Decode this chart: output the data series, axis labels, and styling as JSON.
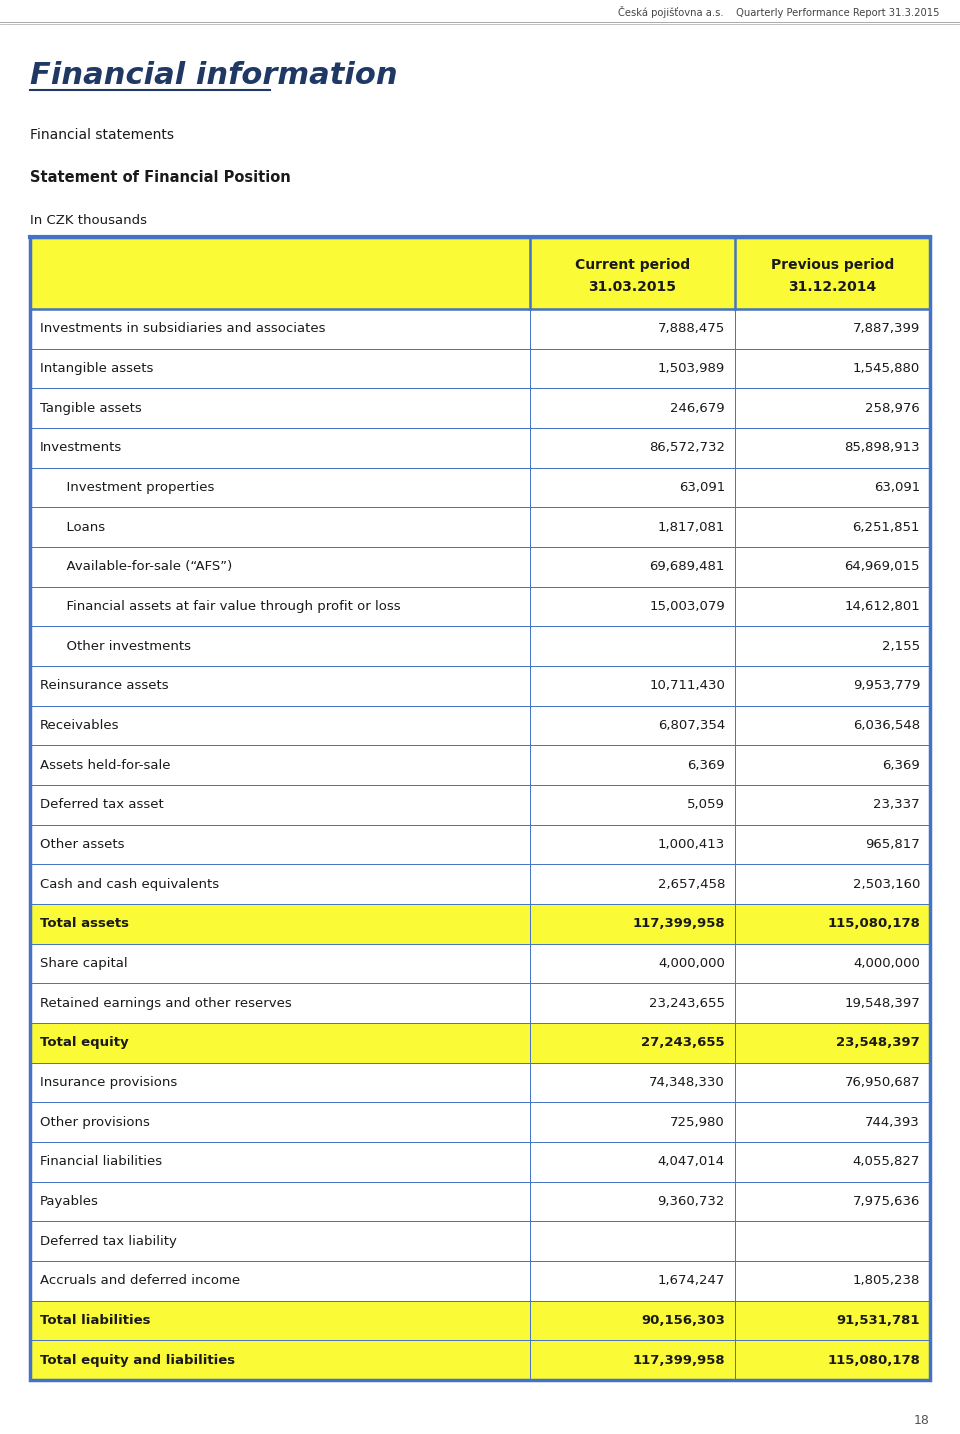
{
  "header_text": "Česká pojišťovna a.s.    Quarterly Performance Report 31.3.2015",
  "page_number": "18",
  "title": "Financial information",
  "subtitle1": "Financial statements",
  "subtitle2": "Statement of Financial Position",
  "subtitle3": "In CZK thousands",
  "rows": [
    {
      "label": "Investments in subsidiaries and associates",
      "val1": "7,888,475",
      "val2": "7,887,399",
      "indent": 0,
      "bold": false,
      "yellow": false
    },
    {
      "label": "Intangible assets",
      "val1": "1,503,989",
      "val2": "1,545,880",
      "indent": 0,
      "bold": false,
      "yellow": false
    },
    {
      "label": "Tangible assets",
      "val1": "246,679",
      "val2": "258,976",
      "indent": 0,
      "bold": false,
      "yellow": false
    },
    {
      "label": "Investments",
      "val1": "86,572,732",
      "val2": "85,898,913",
      "indent": 0,
      "bold": false,
      "yellow": false
    },
    {
      "label": "  Investment properties",
      "val1": "63,091",
      "val2": "63,091",
      "indent": 1,
      "bold": false,
      "yellow": false
    },
    {
      "label": "  Loans",
      "val1": "1,817,081",
      "val2": "6,251,851",
      "indent": 1,
      "bold": false,
      "yellow": false
    },
    {
      "label": "  Available-for-sale (“AFS”)",
      "val1": "69,689,481",
      "val2": "64,969,015",
      "indent": 1,
      "bold": false,
      "yellow": false
    },
    {
      "label": "  Financial assets at fair value through profit or loss",
      "val1": "15,003,079",
      "val2": "14,612,801",
      "indent": 1,
      "bold": false,
      "yellow": false
    },
    {
      "label": "  Other investments",
      "val1": "",
      "val2": "2,155",
      "indent": 1,
      "bold": false,
      "yellow": false
    },
    {
      "label": "Reinsurance assets",
      "val1": "10,711,430",
      "val2": "9,953,779",
      "indent": 0,
      "bold": false,
      "yellow": false
    },
    {
      "label": "Receivables",
      "val1": "6,807,354",
      "val2": "6,036,548",
      "indent": 0,
      "bold": false,
      "yellow": false
    },
    {
      "label": "Assets held-for-sale",
      "val1": "6,369",
      "val2": "6,369",
      "indent": 0,
      "bold": false,
      "yellow": false
    },
    {
      "label": "Deferred tax asset",
      "val1": "5,059",
      "val2": "23,337",
      "indent": 0,
      "bold": false,
      "yellow": false
    },
    {
      "label": "Other assets",
      "val1": "1,000,413",
      "val2": "965,817",
      "indent": 0,
      "bold": false,
      "yellow": false
    },
    {
      "label": "Cash and cash equivalents",
      "val1": "2,657,458",
      "val2": "2,503,160",
      "indent": 0,
      "bold": false,
      "yellow": false
    },
    {
      "label": "Total assets",
      "val1": "117,399,958",
      "val2": "115,080,178",
      "indent": 0,
      "bold": true,
      "yellow": true
    },
    {
      "label": "Share capital",
      "val1": "4,000,000",
      "val2": "4,000,000",
      "indent": 0,
      "bold": false,
      "yellow": false
    },
    {
      "label": "Retained earnings and other reserves",
      "val1": "23,243,655",
      "val2": "19,548,397",
      "indent": 0,
      "bold": false,
      "yellow": false
    },
    {
      "label": "Total equity",
      "val1": "27,243,655",
      "val2": "23,548,397",
      "indent": 0,
      "bold": true,
      "yellow": true
    },
    {
      "label": "Insurance provisions",
      "val1": "74,348,330",
      "val2": "76,950,687",
      "indent": 0,
      "bold": false,
      "yellow": false
    },
    {
      "label": "Other provisions",
      "val1": "725,980",
      "val2": "744,393",
      "indent": 0,
      "bold": false,
      "yellow": false
    },
    {
      "label": "Financial liabilities",
      "val1": "4,047,014",
      "val2": "4,055,827",
      "indent": 0,
      "bold": false,
      "yellow": false
    },
    {
      "label": "Payables",
      "val1": "9,360,732",
      "val2": "7,975,636",
      "indent": 0,
      "bold": false,
      "yellow": false
    },
    {
      "label": "Deferred tax liability",
      "val1": "",
      "val2": "",
      "indent": 0,
      "bold": false,
      "yellow": false
    },
    {
      "label": "Accruals and deferred income",
      "val1": "1,674,247",
      "val2": "1,805,238",
      "indent": 0,
      "bold": false,
      "yellow": false
    },
    {
      "label": "Total liabilities",
      "val1": "90,156,303",
      "val2": "91,531,781",
      "indent": 0,
      "bold": true,
      "yellow": true
    },
    {
      "label": "Total equity and liabilities",
      "val1": "117,399,958",
      "val2": "115,080,178",
      "indent": 0,
      "bold": true,
      "yellow": true
    }
  ],
  "colors": {
    "yellow": "#FAFA37",
    "white": "#FFFFFF",
    "border": "#4472C4",
    "title": "#1F3864",
    "text": "#1A1A1A",
    "page_bg": "#FFFFFF",
    "header_line": "#AAAAAA"
  },
  "dpi": 100,
  "fig_w": 9.6,
  "fig_h": 14.34
}
